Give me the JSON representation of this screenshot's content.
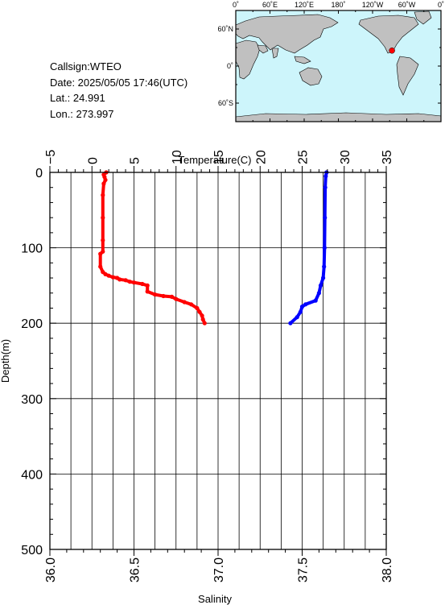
{
  "meta": {
    "callsign": "Callsign:WTEO",
    "date": "Date:  2025/05/05 17:46(UTC)",
    "lat": "Lat.:   24.991",
    "lon": "Lon.:  273.997"
  },
  "map": {
    "top_labels": [
      "0˚",
      "60˚E",
      "120˚E",
      "180˚",
      "120˚W",
      "60˚W",
      "0˚"
    ],
    "left_labels": [
      "60˚N",
      "0˚",
      "60˚S"
    ],
    "station": {
      "lon": 273.997,
      "lat": 24.991
    },
    "colors": {
      "ocean": "#cdf5fb",
      "land": "#c0c0c0",
      "marker": "#ff0000"
    }
  },
  "chart_data": {
    "type": "line",
    "ylabel": "Depth(m)",
    "ylim": [
      0,
      500
    ],
    "yticks": [
      "0",
      "100",
      "200",
      "300",
      "400",
      "500"
    ],
    "top_axis": {
      "label": "Temperature(C)",
      "range": [
        -5,
        35
      ],
      "ticks": [
        "−5",
        "0",
        "5",
        "10",
        "15",
        "20",
        "25",
        "30",
        "35"
      ]
    },
    "bottom_axis": {
      "label": "Salinity",
      "range": [
        36.0,
        38.0
      ],
      "ticks": [
        "36.0",
        "36.5",
        "37.0",
        "37.5",
        "38.0"
      ]
    },
    "series": [
      {
        "axis": "temperature",
        "color": "#ff0000",
        "points": [
          [
            1.7,
            0
          ],
          [
            1.4,
            3
          ],
          [
            1.5,
            6
          ],
          [
            1.6,
            10
          ],
          [
            1.4,
            15
          ],
          [
            1.3,
            30
          ],
          [
            1.3,
            60
          ],
          [
            1.3,
            90
          ],
          [
            1.3,
            105
          ],
          [
            1.0,
            108
          ],
          [
            1.0,
            125
          ],
          [
            1.3,
            132
          ],
          [
            1.6,
            135
          ],
          [
            2.0,
            137
          ],
          [
            2.5,
            139
          ],
          [
            3.0,
            140
          ],
          [
            3.3,
            142
          ],
          [
            4.0,
            143
          ],
          [
            4.5,
            145
          ],
          [
            5.0,
            146
          ],
          [
            6.0,
            148
          ],
          [
            6.6,
            150
          ],
          [
            6.6,
            158
          ],
          [
            7.5,
            162
          ],
          [
            8.5,
            164
          ],
          [
            9.5,
            165
          ],
          [
            10.0,
            168
          ],
          [
            11.0,
            172
          ],
          [
            11.8,
            175
          ],
          [
            12.5,
            180
          ],
          [
            12.8,
            185
          ],
          [
            13.1,
            190
          ],
          [
            13.2,
            195
          ],
          [
            13.4,
            200
          ]
        ]
      },
      {
        "axis": "salinity",
        "color": "#0000ff",
        "points": [
          [
            37.645,
            0
          ],
          [
            37.64,
            5
          ],
          [
            37.637,
            20
          ],
          [
            37.635,
            60
          ],
          [
            37.633,
            100
          ],
          [
            37.63,
            125
          ],
          [
            37.625,
            140
          ],
          [
            37.61,
            150
          ],
          [
            37.6,
            160
          ],
          [
            37.58,
            170
          ],
          [
            37.52,
            175
          ],
          [
            37.5,
            178
          ],
          [
            37.49,
            185
          ],
          [
            37.47,
            192
          ],
          [
            37.43,
            200
          ]
        ]
      }
    ]
  }
}
